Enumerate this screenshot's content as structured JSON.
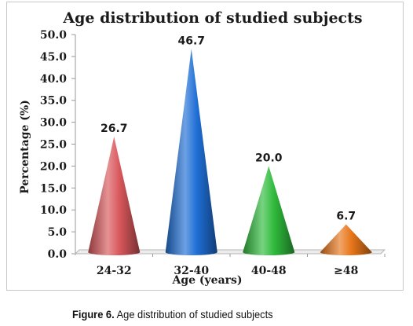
{
  "chart_data": {
    "type": "bar",
    "bar_shape": "cone",
    "title": "Age distribution of studied subjects",
    "xlabel": "Age (years)",
    "ylabel": "Percentage (%)",
    "categories": [
      "24-32",
      "32-40",
      "40-48",
      "≥48"
    ],
    "values": [
      26.7,
      46.7,
      20.0,
      6.7
    ],
    "data_labels": [
      "26.7",
      "46.7",
      "20.0",
      "6.7"
    ],
    "ylim": [
      0,
      50
    ],
    "yticks": [
      "0.0",
      "5.0",
      "10.0",
      "15.0",
      "20.0",
      "25.0",
      "30.0",
      "35.0",
      "40.0",
      "45.0",
      "50.0"
    ],
    "grid": false,
    "legend": "none",
    "colors": [
      "#d9585c",
      "#1f6fd6",
      "#2fbb3c",
      "#e8761a"
    ]
  },
  "caption": {
    "label": "Figure 6.",
    "text": "Age distribution of studied subjects"
  }
}
